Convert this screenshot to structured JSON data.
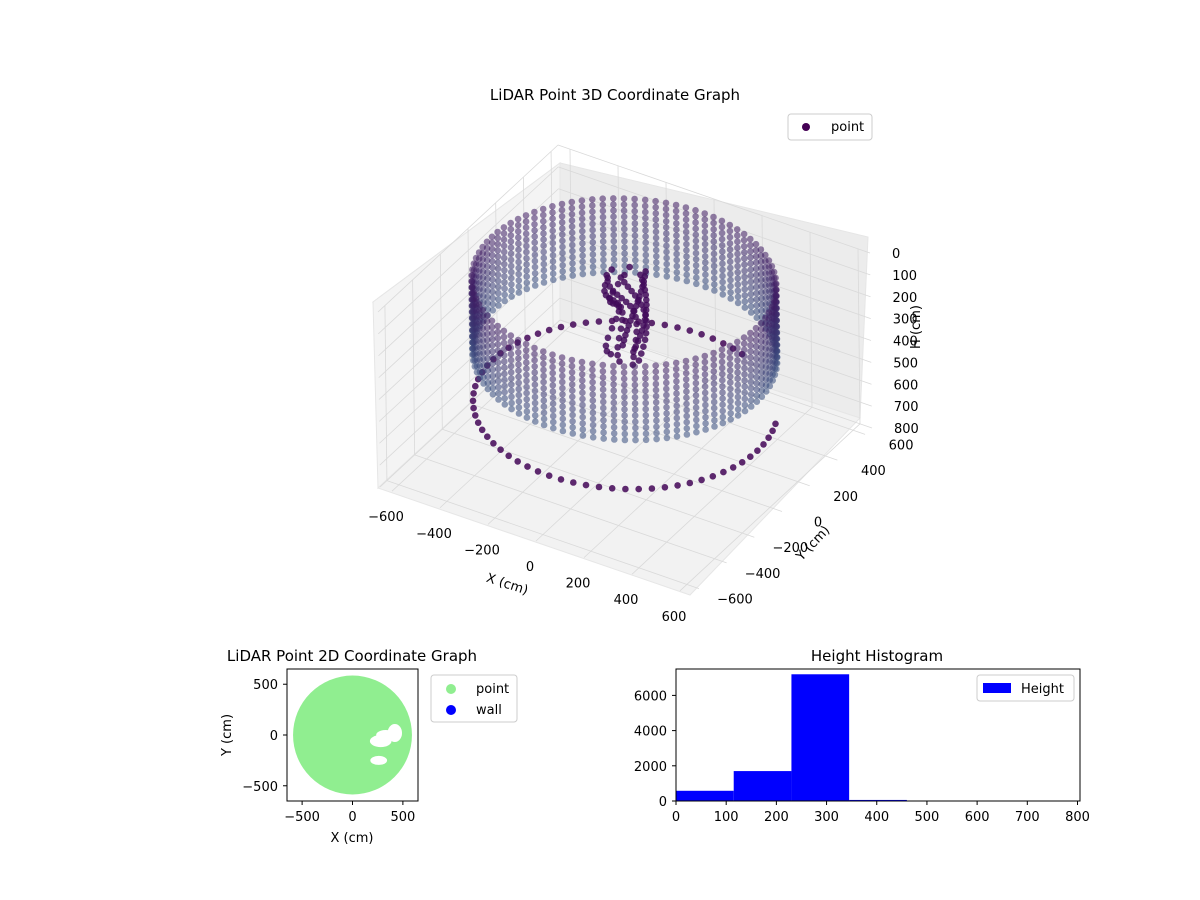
{
  "chart_data": [
    {
      "type": "scatter3d",
      "title": "LiDAR Point 3D Coordinate Graph",
      "xlabel": "X (cm)",
      "ylabel": "Y (cm)",
      "zlabel": "H (cm)",
      "xlim": [
        -650,
        650
      ],
      "ylim": [
        -650,
        650
      ],
      "zlim": [
        0,
        800
      ],
      "z_inverted": true,
      "x_ticks": [
        "−600",
        "−400",
        "−200",
        "0",
        "200",
        "400",
        "600"
      ],
      "y_ticks": [
        "−600",
        "−400",
        "−200",
        "0",
        "200",
        "400",
        "600"
      ],
      "z_ticks": [
        "0",
        "100",
        "200",
        "300",
        "400",
        "500",
        "600",
        "700",
        "800"
      ],
      "legend": {
        "position": "upper-right",
        "entries": [
          {
            "name": "point",
            "color": "#440154"
          }
        ]
      },
      "colormap": "viridis",
      "grid": true,
      "description_values": {
        "wall_radius": 550,
        "wall_height_range": [
          0,
          350
        ],
        "floor_ring_height": 560
      }
    },
    {
      "type": "scatter",
      "title": "LiDAR Point 2D Coordinate Graph",
      "xlabel": "X (cm)",
      "ylabel": "Y (cm)",
      "xlim": [
        -650,
        650
      ],
      "ylim": [
        -650,
        650
      ],
      "x_ticks": [
        "−500",
        "0",
        "500"
      ],
      "y_ticks": [
        "−500",
        "0",
        "500"
      ],
      "series": [
        {
          "name": "point",
          "color": "#90ee90"
        },
        {
          "name": "wall",
          "color": "#0000ff"
        }
      ],
      "legend": {
        "position": "outside-right"
      }
    },
    {
      "type": "bar",
      "title": "Height Histogram",
      "xlabel": "",
      "ylabel": "",
      "xlim": [
        0,
        805
      ],
      "ylim": [
        0,
        7500
      ],
      "x_ticks": [
        "0",
        "100",
        "200",
        "300",
        "400",
        "500",
        "600",
        "700",
        "800"
      ],
      "y_ticks": [
        "0",
        "2000",
        "4000",
        "6000"
      ],
      "bin_edges": [
        0,
        115,
        230,
        345,
        460,
        575,
        690,
        805
      ],
      "values": [
        580,
        1700,
        7200,
        60,
        10,
        5,
        5
      ],
      "series": [
        {
          "name": "Height",
          "color": "#0000ff"
        }
      ],
      "legend": {
        "position": "upper-right"
      }
    }
  ]
}
